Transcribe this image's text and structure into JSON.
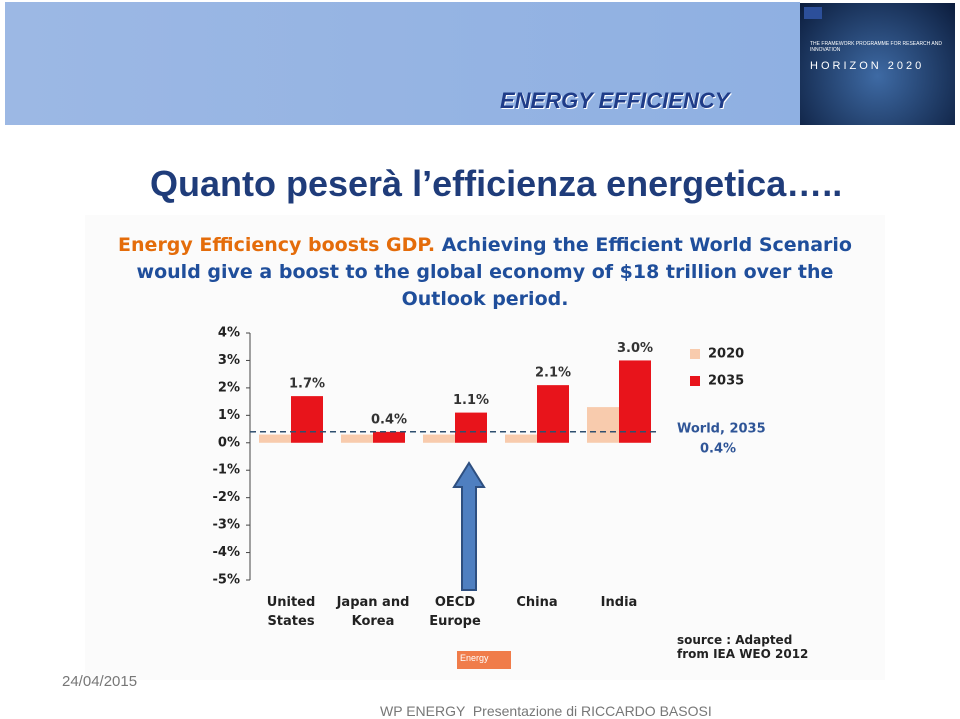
{
  "slide": {
    "header": "ENERGY EFFICIENCY",
    "logo_caption": "THE FRAMEWORK PROGRAMME FOR RESEARCH AND INNOVATION",
    "logo_text": "HORIZON 2020",
    "title": "Quanto peserà l’efficienza energetica…..",
    "date": "24/04/2015",
    "footer": "WP ENERGY  Presentazione di RICCARDO BASOSI",
    "tag": "Energy"
  },
  "chart_data": {
    "type": "bar",
    "title": "Energy Efficiency boosts GDP.",
    "subtitle": "Achieving the Efficient World Scenario would give a boost to the global economy of $18 trillion over the Outlook period.",
    "categories": [
      "United States",
      "Japan and Korea",
      "OECD Europe",
      "China",
      "India"
    ],
    "series": [
      {
        "name": "2020",
        "color": "#f8cbad",
        "values": [
          0.3,
          0.3,
          0.3,
          0.3,
          1.3
        ]
      },
      {
        "name": "2035",
        "color": "#e8141b",
        "values": [
          1.7,
          0.4,
          1.1,
          2.1,
          3.0
        ],
        "value_labels": [
          "1.7%",
          "0.4%",
          "1.1%",
          "2.1%",
          "3.0%"
        ]
      }
    ],
    "reference_line": {
      "name": "World, 2035",
      "value": 0.4,
      "label": "0.4%"
    },
    "ylim": [
      -5,
      4
    ],
    "yticks": [
      {
        "value": 4,
        "label": "4%"
      },
      {
        "value": 3,
        "label": "3%"
      },
      {
        "value": 2,
        "label": "2%"
      },
      {
        "value": 1,
        "label": "1%"
      },
      {
        "value": 0,
        "label": "0%"
      },
      {
        "value": -1,
        "label": "-1%"
      },
      {
        "value": -2,
        "label": "-2%"
      },
      {
        "value": -3,
        "label": "-3%"
      },
      {
        "value": -4,
        "label": "-4%"
      },
      {
        "value": -5,
        "label": "-5%"
      }
    ],
    "grid": false,
    "source": "source : Adapted from IEA WEO 2012"
  }
}
